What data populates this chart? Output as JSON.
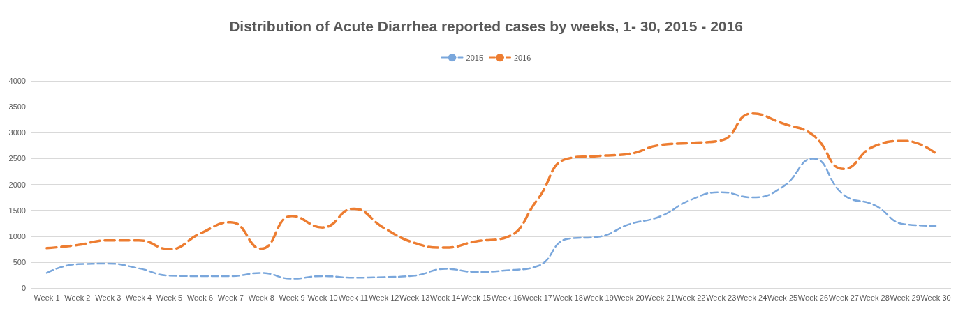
{
  "chart_data": {
    "type": "line",
    "title": "Distribution of Acute Diarrhea reported cases by weeks, 1- 30, 2015 - 2016",
    "categories": [
      "Week 1",
      "Week 2",
      "Week 3",
      "Week 4",
      "Week 5",
      "Week 6",
      "Week 7",
      "Week 8",
      "Week 9",
      "Week 10",
      "Week 11",
      "Week 12",
      "Week 13",
      "Week 14",
      "Week 15",
      "Week 16",
      "Week 17",
      "Week 18",
      "Week 19",
      "Week 20",
      "Week 21",
      "Week 22",
      "Week 23",
      "Week 24",
      "Week 25",
      "Week 26",
      "Week 27",
      "Week 28",
      "Week 29",
      "Week 30"
    ],
    "series": [
      {
        "name": "2015",
        "color": "#7aa7dc",
        "values": [
          290,
          460,
          470,
          380,
          240,
          230,
          230,
          290,
          180,
          230,
          200,
          210,
          240,
          370,
          310,
          340,
          420,
          950,
          990,
          1230,
          1380,
          1700,
          1850,
          1750,
          1950,
          2500,
          1800,
          1600,
          1230,
          1200
        ]
      },
      {
        "name": "2016",
        "color": "#ed7d31",
        "values": [
          770,
          830,
          920,
          920,
          750,
          1050,
          1270,
          760,
          1390,
          1170,
          1530,
          1160,
          870,
          780,
          900,
          980,
          1700,
          2500,
          2550,
          2590,
          2760,
          2800,
          2850,
          3370,
          3180,
          2950,
          2300,
          2740,
          2840,
          2600
        ]
      }
    ],
    "ylim": [
      0,
      4000
    ],
    "yticks": [
      0,
      500,
      1000,
      1500,
      2000,
      2500,
      3000,
      3500,
      4000
    ],
    "grid": "y",
    "legend": "top",
    "marker": "none",
    "line_style": "dashed"
  }
}
